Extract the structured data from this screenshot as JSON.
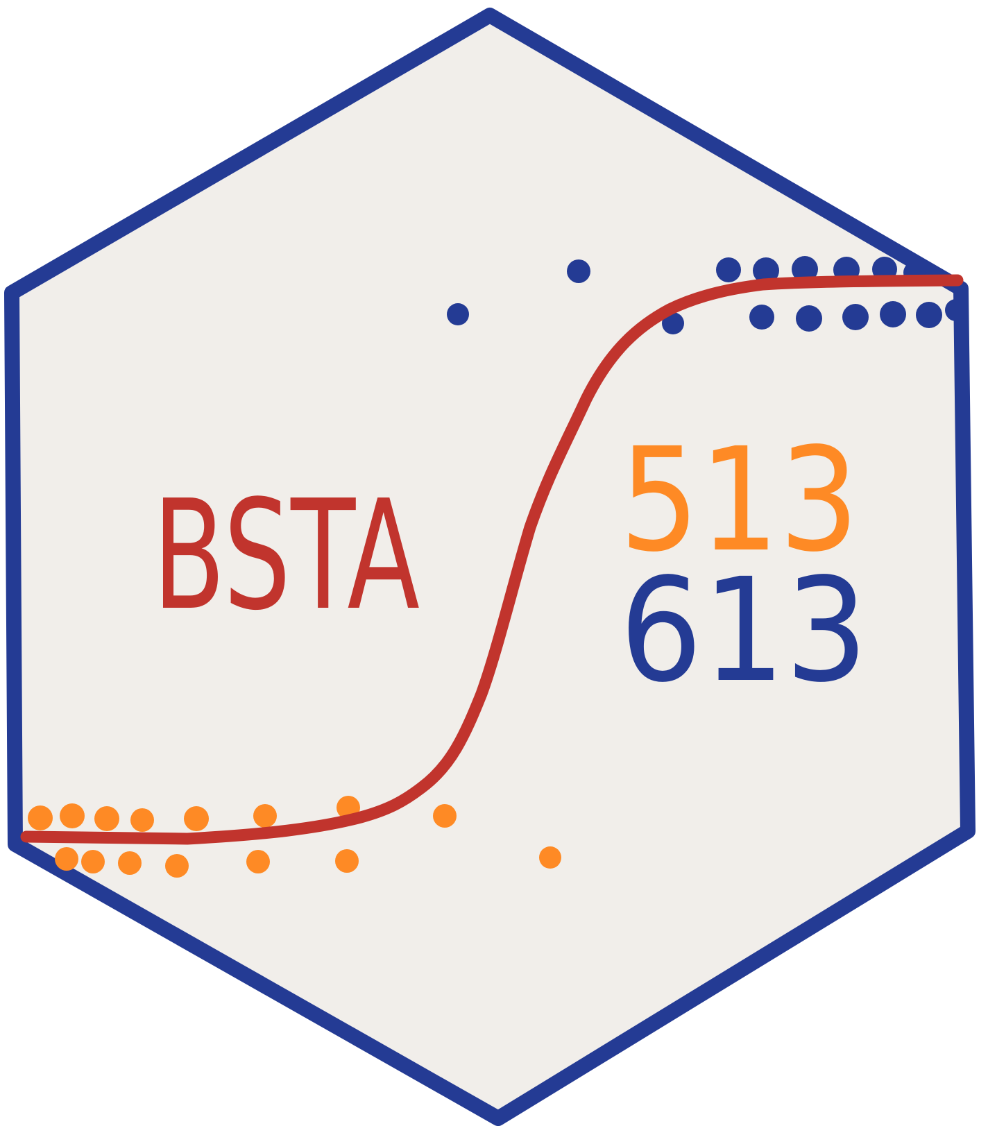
{
  "logo": {
    "title": "BSTA",
    "course_numbers": [
      "513",
      "613"
    ]
  },
  "colors": {
    "background": "#ffffff",
    "hex_fill": "#f1eeea",
    "hex_border": "#243b94",
    "curve": "#c1342d",
    "orange": "#fe8a25",
    "blue": "#243b94",
    "title": "#c1342d"
  },
  "icons": {
    "shape": "hexagon-sticker",
    "curve": "sigmoid-curve",
    "points": "dot-markers"
  }
}
